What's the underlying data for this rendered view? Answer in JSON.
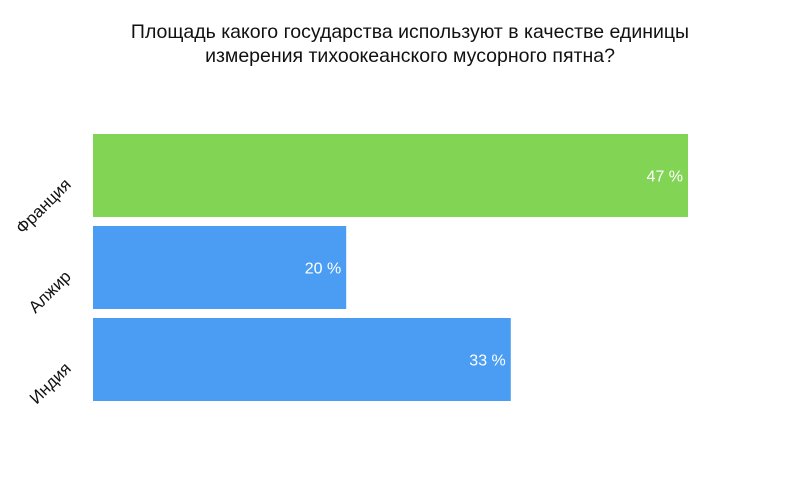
{
  "chart_data": {
    "type": "bar",
    "orientation": "horizontal",
    "title": [
      "Площадь какого государства используют в качестве единицы",
      "измерения тихоокеанского мусорного пятна?"
    ],
    "categories": [
      "Франция",
      "Алжир",
      "Индия"
    ],
    "values": [
      47,
      20,
      33
    ],
    "value_labels": [
      "47 %",
      "20 %",
      "33 %"
    ],
    "colors": [
      "#82d455",
      "#4a9df2",
      "#4a9df2"
    ],
    "xlim": [
      0,
      100
    ],
    "grid": false,
    "legend": "none"
  }
}
